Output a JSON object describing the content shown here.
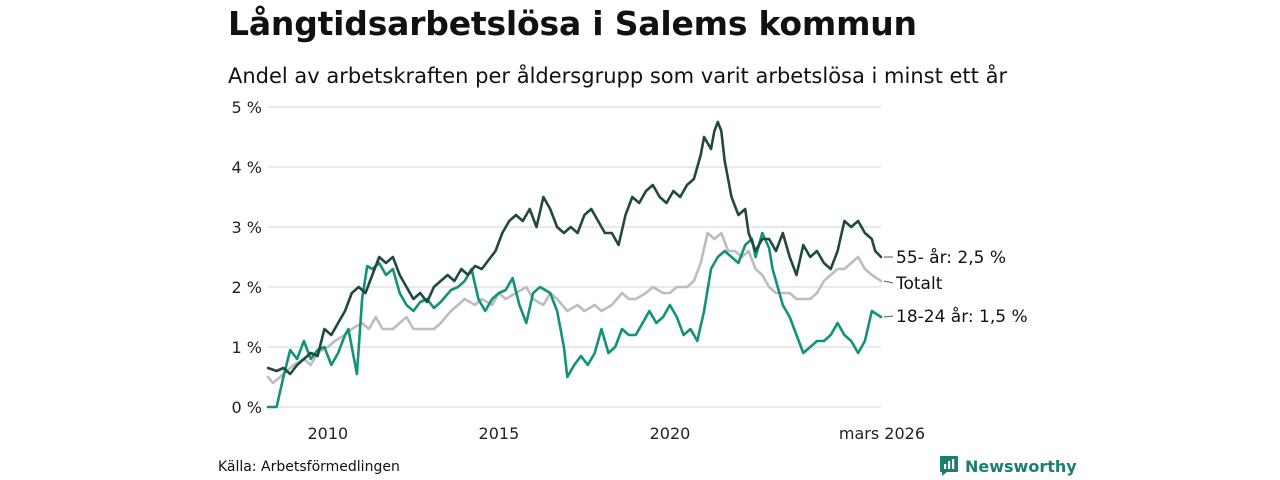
{
  "header": {
    "title": "Långtidsarbetslösa i Salems kommun",
    "subtitle": "Andel av arbetskraften per åldersgrupp som varit arbetslösa i minst ett år"
  },
  "footer": {
    "source": "Källa: Arbetsförmedlingen",
    "brand": "Newsworthy"
  },
  "colors": {
    "older": "#1f4a3d",
    "total": "#bdbdbd",
    "young": "#12917d",
    "grid": "#dedede",
    "brand": "#1b7f6e"
  },
  "chart_data": {
    "type": "line",
    "title": "Långtidsarbetslösa i Salems kommun",
    "subtitle": "Andel av arbetskraften per åldersgrupp som varit arbetslösa i minst ett år",
    "x_range": [
      2008.25,
      2026.17
    ],
    "ylim": [
      0,
      5
    ],
    "y_ticks": [
      {
        "value": 0,
        "label": "0 %"
      },
      {
        "value": 1,
        "label": "1 %"
      },
      {
        "value": 2,
        "label": "2 %"
      },
      {
        "value": 3,
        "label": "3 %"
      },
      {
        "value": 4,
        "label": "4 %"
      },
      {
        "value": 5,
        "label": "5 %"
      }
    ],
    "x_ticks": [
      {
        "value": 2010,
        "label": "2010"
      },
      {
        "value": 2015,
        "label": "2015"
      },
      {
        "value": 2020,
        "label": "2020"
      },
      {
        "value": 2026.17,
        "label": "mars 2026"
      }
    ],
    "grid": true,
    "series": [
      {
        "name": "Totalt",
        "end_label": "Totalt",
        "color": "#bdbdbd",
        "points": [
          [
            2008.25,
            0.5
          ],
          [
            2008.4,
            0.4
          ],
          [
            2008.6,
            0.5
          ],
          [
            2008.8,
            0.6
          ],
          [
            2009.0,
            0.7
          ],
          [
            2009.3,
            0.8
          ],
          [
            2009.5,
            0.7
          ],
          [
            2009.7,
            0.9
          ],
          [
            2010.0,
            1.0
          ],
          [
            2010.2,
            1.1
          ],
          [
            2010.5,
            1.2
          ],
          [
            2010.7,
            1.3
          ],
          [
            2011.0,
            1.4
          ],
          [
            2011.2,
            1.3
          ],
          [
            2011.4,
            1.5
          ],
          [
            2011.6,
            1.3
          ],
          [
            2011.9,
            1.3
          ],
          [
            2012.1,
            1.4
          ],
          [
            2012.3,
            1.5
          ],
          [
            2012.5,
            1.3
          ],
          [
            2012.8,
            1.3
          ],
          [
            2013.1,
            1.3
          ],
          [
            2013.3,
            1.4
          ],
          [
            2013.6,
            1.6
          ],
          [
            2013.8,
            1.7
          ],
          [
            2014.0,
            1.8
          ],
          [
            2014.3,
            1.7
          ],
          [
            2014.5,
            1.8
          ],
          [
            2014.8,
            1.7
          ],
          [
            2015.0,
            1.9
          ],
          [
            2015.2,
            1.8
          ],
          [
            2015.5,
            1.9
          ],
          [
            2015.8,
            2.0
          ],
          [
            2016.0,
            1.8
          ],
          [
            2016.3,
            1.7
          ],
          [
            2016.5,
            1.9
          ],
          [
            2016.7,
            1.8
          ],
          [
            2017.0,
            1.6
          ],
          [
            2017.3,
            1.7
          ],
          [
            2017.5,
            1.6
          ],
          [
            2017.8,
            1.7
          ],
          [
            2018.0,
            1.6
          ],
          [
            2018.3,
            1.7
          ],
          [
            2018.6,
            1.9
          ],
          [
            2018.8,
            1.8
          ],
          [
            2019.0,
            1.8
          ],
          [
            2019.3,
            1.9
          ],
          [
            2019.5,
            2.0
          ],
          [
            2019.8,
            1.9
          ],
          [
            2020.0,
            1.9
          ],
          [
            2020.2,
            2.0
          ],
          [
            2020.5,
            2.0
          ],
          [
            2020.7,
            2.1
          ],
          [
            2020.9,
            2.4
          ],
          [
            2021.1,
            2.9
          ],
          [
            2021.3,
            2.8
          ],
          [
            2021.5,
            2.9
          ],
          [
            2021.7,
            2.6
          ],
          [
            2021.9,
            2.6
          ],
          [
            2022.1,
            2.5
          ],
          [
            2022.3,
            2.6
          ],
          [
            2022.5,
            2.3
          ],
          [
            2022.7,
            2.2
          ],
          [
            2022.9,
            2.0
          ],
          [
            2023.1,
            1.9
          ],
          [
            2023.3,
            1.9
          ],
          [
            2023.5,
            1.9
          ],
          [
            2023.7,
            1.8
          ],
          [
            2023.9,
            1.8
          ],
          [
            2024.1,
            1.8
          ],
          [
            2024.3,
            1.9
          ],
          [
            2024.5,
            2.1
          ],
          [
            2024.7,
            2.2
          ],
          [
            2024.9,
            2.3
          ],
          [
            2025.1,
            2.3
          ],
          [
            2025.3,
            2.4
          ],
          [
            2025.5,
            2.5
          ],
          [
            2025.7,
            2.3
          ],
          [
            2025.9,
            2.2
          ],
          [
            2026.17,
            2.1
          ]
        ]
      },
      {
        "name": "18-24 år",
        "end_label": "18-24 år: 1,5 %",
        "color": "#12917d",
        "points": [
          [
            2008.25,
            0.0
          ],
          [
            2008.5,
            0.0
          ],
          [
            2008.7,
            0.5
          ],
          [
            2008.9,
            0.95
          ],
          [
            2009.1,
            0.8
          ],
          [
            2009.3,
            1.1
          ],
          [
            2009.5,
            0.8
          ],
          [
            2009.7,
            0.95
          ],
          [
            2009.9,
            1.0
          ],
          [
            2010.1,
            0.7
          ],
          [
            2010.3,
            0.9
          ],
          [
            2010.5,
            1.2
          ],
          [
            2010.6,
            1.3
          ],
          [
            2010.7,
            1.0
          ],
          [
            2010.85,
            0.55
          ],
          [
            2011.0,
            1.8
          ],
          [
            2011.15,
            2.35
          ],
          [
            2011.3,
            2.3
          ],
          [
            2011.5,
            2.4
          ],
          [
            2011.7,
            2.2
          ],
          [
            2011.9,
            2.3
          ],
          [
            2012.1,
            1.9
          ],
          [
            2012.3,
            1.7
          ],
          [
            2012.5,
            1.6
          ],
          [
            2012.7,
            1.75
          ],
          [
            2012.9,
            1.8
          ],
          [
            2013.1,
            1.65
          ],
          [
            2013.3,
            1.75
          ],
          [
            2013.6,
            1.95
          ],
          [
            2013.8,
            2.0
          ],
          [
            2014.0,
            2.1
          ],
          [
            2014.2,
            2.3
          ],
          [
            2014.4,
            1.8
          ],
          [
            2014.6,
            1.6
          ],
          [
            2014.8,
            1.8
          ],
          [
            2015.0,
            1.9
          ],
          [
            2015.2,
            1.95
          ],
          [
            2015.4,
            2.15
          ],
          [
            2015.6,
            1.7
          ],
          [
            2015.8,
            1.4
          ],
          [
            2016.0,
            1.9
          ],
          [
            2016.2,
            2.0
          ],
          [
            2016.5,
            1.9
          ],
          [
            2016.7,
            1.6
          ],
          [
            2016.9,
            1.0
          ],
          [
            2017.0,
            0.5
          ],
          [
            2017.2,
            0.7
          ],
          [
            2017.4,
            0.85
          ],
          [
            2017.6,
            0.7
          ],
          [
            2017.8,
            0.9
          ],
          [
            2018.0,
            1.3
          ],
          [
            2018.2,
            0.9
          ],
          [
            2018.4,
            1.0
          ],
          [
            2018.6,
            1.3
          ],
          [
            2018.8,
            1.2
          ],
          [
            2019.0,
            1.2
          ],
          [
            2019.2,
            1.4
          ],
          [
            2019.4,
            1.6
          ],
          [
            2019.6,
            1.4
          ],
          [
            2019.8,
            1.5
          ],
          [
            2020.0,
            1.7
          ],
          [
            2020.2,
            1.5
          ],
          [
            2020.4,
            1.2
          ],
          [
            2020.6,
            1.3
          ],
          [
            2020.8,
            1.1
          ],
          [
            2021.0,
            1.6
          ],
          [
            2021.2,
            2.3
          ],
          [
            2021.4,
            2.5
          ],
          [
            2021.6,
            2.6
          ],
          [
            2021.8,
            2.5
          ],
          [
            2022.0,
            2.4
          ],
          [
            2022.2,
            2.7
          ],
          [
            2022.4,
            2.8
          ],
          [
            2022.5,
            2.5
          ],
          [
            2022.7,
            2.9
          ],
          [
            2022.9,
            2.65
          ],
          [
            2023.0,
            2.3
          ],
          [
            2023.1,
            2.1
          ],
          [
            2023.3,
            1.7
          ],
          [
            2023.5,
            1.5
          ],
          [
            2023.7,
            1.2
          ],
          [
            2023.9,
            0.9
          ],
          [
            2024.1,
            1.0
          ],
          [
            2024.3,
            1.1
          ],
          [
            2024.5,
            1.1
          ],
          [
            2024.7,
            1.2
          ],
          [
            2024.9,
            1.4
          ],
          [
            2025.1,
            1.2
          ],
          [
            2025.3,
            1.1
          ],
          [
            2025.5,
            0.9
          ],
          [
            2025.7,
            1.1
          ],
          [
            2025.9,
            1.6
          ],
          [
            2026.17,
            1.5
          ]
        ]
      },
      {
        "name": "55- år",
        "end_label": "55- år: 2,5 %",
        "color": "#1f4a3d",
        "points": [
          [
            2008.25,
            0.65
          ],
          [
            2008.5,
            0.6
          ],
          [
            2008.7,
            0.65
          ],
          [
            2008.9,
            0.55
          ],
          [
            2009.1,
            0.7
          ],
          [
            2009.3,
            0.8
          ],
          [
            2009.5,
            0.9
          ],
          [
            2009.7,
            0.85
          ],
          [
            2009.9,
            1.3
          ],
          [
            2010.1,
            1.2
          ],
          [
            2010.3,
            1.4
          ],
          [
            2010.5,
            1.6
          ],
          [
            2010.7,
            1.9
          ],
          [
            2010.9,
            2.0
          ],
          [
            2011.1,
            1.9
          ],
          [
            2011.3,
            2.2
          ],
          [
            2011.5,
            2.5
          ],
          [
            2011.7,
            2.4
          ],
          [
            2011.9,
            2.5
          ],
          [
            2012.1,
            2.2
          ],
          [
            2012.3,
            2.0
          ],
          [
            2012.5,
            1.8
          ],
          [
            2012.7,
            1.9
          ],
          [
            2012.9,
            1.75
          ],
          [
            2013.1,
            2.0
          ],
          [
            2013.3,
            2.1
          ],
          [
            2013.5,
            2.2
          ],
          [
            2013.7,
            2.1
          ],
          [
            2013.9,
            2.3
          ],
          [
            2014.1,
            2.2
          ],
          [
            2014.3,
            2.35
          ],
          [
            2014.5,
            2.3
          ],
          [
            2014.7,
            2.45
          ],
          [
            2014.9,
            2.6
          ],
          [
            2015.1,
            2.9
          ],
          [
            2015.3,
            3.1
          ],
          [
            2015.5,
            3.2
          ],
          [
            2015.7,
            3.1
          ],
          [
            2015.9,
            3.3
          ],
          [
            2016.1,
            3.0
          ],
          [
            2016.3,
            3.5
          ],
          [
            2016.5,
            3.3
          ],
          [
            2016.7,
            3.0
          ],
          [
            2016.9,
            2.9
          ],
          [
            2017.1,
            3.0
          ],
          [
            2017.3,
            2.9
          ],
          [
            2017.5,
            3.2
          ],
          [
            2017.7,
            3.3
          ],
          [
            2017.9,
            3.1
          ],
          [
            2018.1,
            2.9
          ],
          [
            2018.3,
            2.9
          ],
          [
            2018.5,
            2.7
          ],
          [
            2018.7,
            3.2
          ],
          [
            2018.9,
            3.5
          ],
          [
            2019.1,
            3.4
          ],
          [
            2019.3,
            3.6
          ],
          [
            2019.5,
            3.7
          ],
          [
            2019.7,
            3.5
          ],
          [
            2019.9,
            3.4
          ],
          [
            2020.1,
            3.6
          ],
          [
            2020.3,
            3.5
          ],
          [
            2020.5,
            3.7
          ],
          [
            2020.7,
            3.8
          ],
          [
            2020.9,
            4.2
          ],
          [
            2021.0,
            4.5
          ],
          [
            2021.2,
            4.3
          ],
          [
            2021.3,
            4.6
          ],
          [
            2021.4,
            4.75
          ],
          [
            2021.5,
            4.6
          ],
          [
            2021.6,
            4.1
          ],
          [
            2021.8,
            3.5
          ],
          [
            2022.0,
            3.2
          ],
          [
            2022.2,
            3.3
          ],
          [
            2022.3,
            2.9
          ],
          [
            2022.5,
            2.6
          ],
          [
            2022.7,
            2.8
          ],
          [
            2022.9,
            2.8
          ],
          [
            2023.1,
            2.6
          ],
          [
            2023.3,
            2.9
          ],
          [
            2023.5,
            2.5
          ],
          [
            2023.7,
            2.2
          ],
          [
            2023.9,
            2.7
          ],
          [
            2024.1,
            2.5
          ],
          [
            2024.3,
            2.6
          ],
          [
            2024.5,
            2.4
          ],
          [
            2024.7,
            2.3
          ],
          [
            2024.9,
            2.6
          ],
          [
            2025.1,
            3.1
          ],
          [
            2025.3,
            3.0
          ],
          [
            2025.5,
            3.1
          ],
          [
            2025.7,
            2.9
          ],
          [
            2025.9,
            2.8
          ],
          [
            2026.0,
            2.6
          ],
          [
            2026.17,
            2.5
          ]
        ]
      }
    ]
  }
}
